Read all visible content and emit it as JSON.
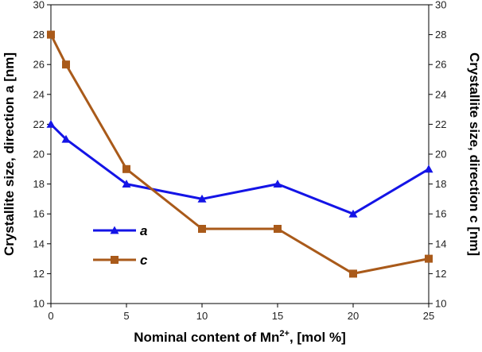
{
  "chart_data": {
    "type": "line",
    "xlabel": "Nominal content of Mn",
    "xlabel_sup": "2+",
    "xlabel_tail": ", [mol %]",
    "ylabel_left": "Crystallite size, direction a [nm]",
    "ylabel_right": "Crystallite size, direction c [nm]",
    "xlim": [
      0,
      25
    ],
    "ylim": [
      10,
      30
    ],
    "x_ticks": [
      0,
      5,
      10,
      15,
      20,
      25
    ],
    "y_ticks": [
      10,
      12,
      14,
      16,
      18,
      20,
      22,
      24,
      26,
      28,
      30
    ],
    "grid": false,
    "legend_position": "lower-left",
    "series": [
      {
        "name": "a",
        "color": "#1414e6",
        "marker": "triangle",
        "axis": "left",
        "x": [
          0,
          1,
          5,
          10,
          15,
          20,
          25
        ],
        "values": [
          22,
          21,
          18,
          17,
          18,
          16,
          19
        ]
      },
      {
        "name": "c",
        "color": "#a95a1a",
        "marker": "square",
        "axis": "right",
        "x": [
          0,
          1,
          5,
          10,
          15,
          20,
          25
        ],
        "values": [
          28,
          26,
          19,
          15,
          15,
          12,
          13
        ]
      }
    ]
  }
}
